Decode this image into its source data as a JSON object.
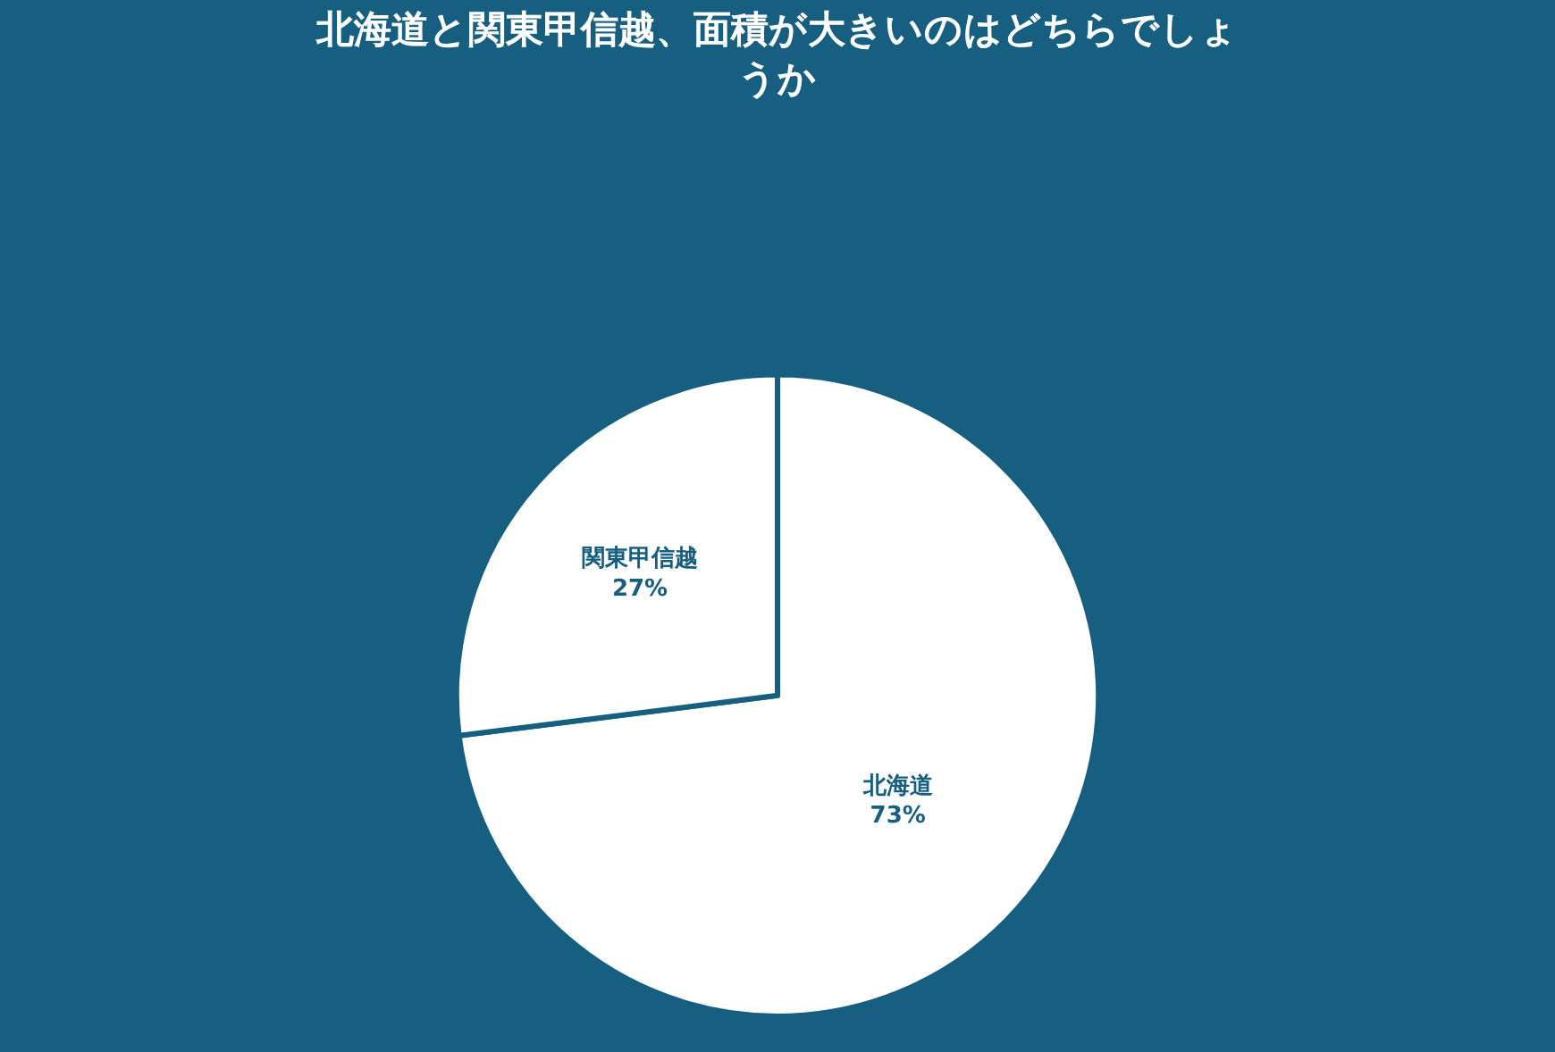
{
  "chart_data": {
    "type": "pie",
    "title": "北海道と関東甲信越、面積が大きいのはどちらでしょうか",
    "categories": [
      "北海道",
      "関東甲信越"
    ],
    "values": [
      73,
      27
    ],
    "value_labels": [
      "73%",
      "27%"
    ],
    "colors": [
      "#ffffff",
      "#ffffff"
    ],
    "legend": false
  }
}
